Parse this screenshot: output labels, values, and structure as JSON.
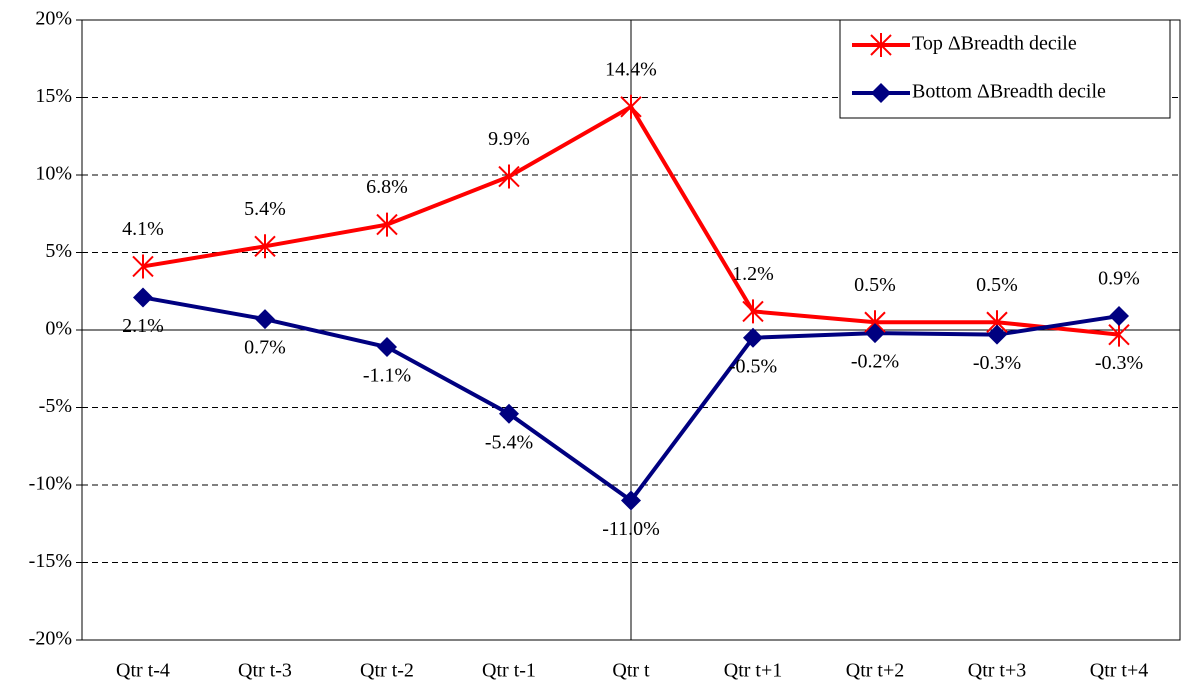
{
  "chart_data": {
    "type": "line",
    "categories": [
      "Qtr t-4",
      "Qtr t-3",
      "Qtr t-2",
      "Qtr t-1",
      "Qtr t",
      "Qtr t+1",
      "Qtr t+2",
      "Qtr t+3",
      "Qtr t+4"
    ],
    "series": [
      {
        "name": "Top ΔBreadth decile",
        "color": "#ff0000",
        "marker": "star",
        "values": [
          4.1,
          5.4,
          6.8,
          9.9,
          14.4,
          1.2,
          0.5,
          0.5,
          -0.3
        ],
        "value_labels": [
          "4.1%",
          "5.4%",
          "6.8%",
          "9.9%",
          "14.4%",
          "1.2%",
          "0.5%",
          "0.5%",
          "-0.3%"
        ]
      },
      {
        "name": "Bottom ΔBreadth decile",
        "color": "#000080",
        "marker": "diamond",
        "values": [
          2.1,
          0.7,
          -1.1,
          -5.4,
          -11.0,
          -0.5,
          -0.2,
          -0.3,
          0.9
        ],
        "value_labels": [
          "2.1%",
          "0.7%",
          "-1.1%",
          "-5.4%",
          "-11.0%",
          "-0.5%",
          "-0.2%",
          "-0.3%",
          "0.9%"
        ]
      }
    ],
    "ylim": [
      -20,
      20
    ],
    "yticks": [
      {
        "value": -20,
        "label": "-20%"
      },
      {
        "value": -15,
        "label": "-15%"
      },
      {
        "value": -10,
        "label": "-10%"
      },
      {
        "value": -5,
        "label": "-5%"
      },
      {
        "value": 0,
        "label": "0%"
      },
      {
        "value": 5,
        "label": "5%"
      },
      {
        "value": 10,
        "label": "10%"
      },
      {
        "value": 15,
        "label": "15%"
      },
      {
        "value": 20,
        "label": "20%"
      }
    ],
    "grid": true,
    "legend": "top-right"
  }
}
